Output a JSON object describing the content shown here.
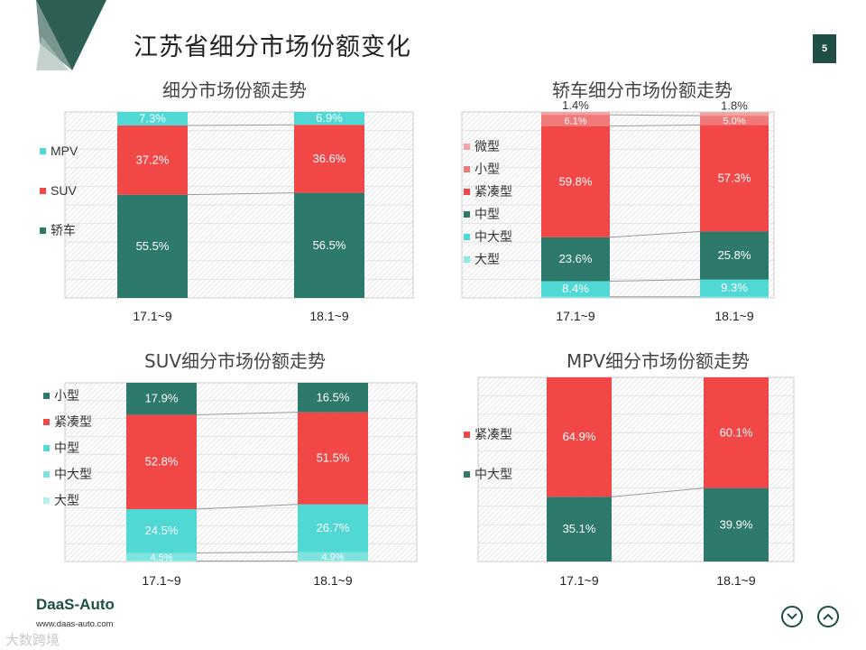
{
  "page": {
    "title": "江苏省细分市场份额变化",
    "page_number": "5",
    "logo": "DaaS-Auto",
    "logo_url": "www.daas-auto.com",
    "watermark": "大数跨境",
    "colors": {
      "dark_teal": "#2d7a6c",
      "red": "#f24747",
      "cyan": "#4fd8d4",
      "deep": "#1f4e45"
    }
  },
  "nav": {
    "down_icon": "chevron-down-icon",
    "up_icon": "chevron-up-icon"
  },
  "chart_data": [
    {
      "type": "bar",
      "title": "细分市场份额走势",
      "categories": [
        "17.1~9",
        "18.1~9"
      ],
      "series": [
        {
          "name": "轿车",
          "values": [
            55.5,
            56.5
          ],
          "labels": [
            "55.5%",
            "56.5%"
          ],
          "color": "#2d7a6c"
        },
        {
          "name": "SUV",
          "values": [
            37.2,
            36.6
          ],
          "labels": [
            "37.2%",
            "36.6%"
          ],
          "color": "#f24747"
        },
        {
          "name": "MPV",
          "values": [
            7.3,
            6.9
          ],
          "labels": [
            "7.3%",
            "6.9%"
          ],
          "color": "#4fd8d4"
        }
      ],
      "legend": [
        "MPV",
        "SUV",
        "轿车"
      ],
      "legend_colors": [
        "#4fd8d4",
        "#f24747",
        "#2d7a6c"
      ],
      "stacked": true,
      "grid": true,
      "legend_position": "left"
    },
    {
      "type": "bar",
      "title": "轿车细分市场份额走势",
      "categories": [
        "17.1~9",
        "18.1~9"
      ],
      "series": [
        {
          "name": "大型",
          "values": [
            0.6,
            0.6
          ],
          "labels": [
            "",
            ""
          ],
          "color": "#8ee8e4"
        },
        {
          "name": "中大型",
          "values": [
            8.4,
            9.3
          ],
          "labels": [
            "8.4%",
            "9.3%"
          ],
          "color": "#4fd8d4"
        },
        {
          "name": "中型",
          "values": [
            23.6,
            25.8
          ],
          "labels": [
            "23.6%",
            "25.8%"
          ],
          "color": "#2d7a6c"
        },
        {
          "name": "紧凑型",
          "values": [
            59.8,
            57.3
          ],
          "labels": [
            "59.8%",
            "57.3%"
          ],
          "color": "#f24747"
        },
        {
          "name": "小型",
          "values": [
            6.1,
            5.0
          ],
          "labels": [
            "6.1%",
            "5.0%"
          ],
          "color": "#f07a7a"
        },
        {
          "name": "微型",
          "values": [
            1.4,
            1.8
          ],
          "labels": [
            "1.4%",
            "1.8%"
          ],
          "color": "#f4a3a3"
        }
      ],
      "legend": [
        "微型",
        "小型",
        "紧凑型",
        "中型",
        "中大型",
        "大型"
      ],
      "legend_colors": [
        "#f4a3a3",
        "#f07a7a",
        "#f24747",
        "#2d7a6c",
        "#4fd8d4",
        "#8ee8e4"
      ],
      "stacked": true,
      "grid": true,
      "legend_position": "left"
    },
    {
      "type": "bar",
      "title": "SUV细分市场份额走势",
      "categories": [
        "17.1~9",
        "18.1~9"
      ],
      "series": [
        {
          "name": "大型",
          "values": [
            0.3,
            0.4
          ],
          "labels": [
            "",
            ""
          ],
          "color": "#b8f0ee"
        },
        {
          "name": "中大型",
          "values": [
            4.5,
            4.9
          ],
          "labels": [
            "4.5%",
            "4.9%"
          ],
          "color": "#7fe3df"
        },
        {
          "name": "中型",
          "values": [
            24.5,
            26.7
          ],
          "labels": [
            "24.5%",
            "26.7%"
          ],
          "color": "#4fd8d4"
        },
        {
          "name": "紧凑型",
          "values": [
            52.8,
            51.5
          ],
          "labels": [
            "52.8%",
            "51.5%"
          ],
          "color": "#f24747"
        },
        {
          "name": "小型",
          "values": [
            17.9,
            16.5
          ],
          "labels": [
            "17.9%",
            "16.5%"
          ],
          "color": "#2d7a6c"
        }
      ],
      "legend": [
        "小型",
        "紧凑型",
        "中型",
        "中大型",
        "大型"
      ],
      "legend_colors": [
        "#2d7a6c",
        "#f24747",
        "#4fd8d4",
        "#7fe3df",
        "#b8f0ee"
      ],
      "stacked": true,
      "grid": true,
      "legend_position": "left"
    },
    {
      "type": "bar",
      "title": "MPV细分市场份额走势",
      "categories": [
        "17.1~9",
        "18.1~9"
      ],
      "series": [
        {
          "name": "中大型",
          "values": [
            35.1,
            39.9
          ],
          "labels": [
            "35.1%",
            "39.9%"
          ],
          "color": "#2d7a6c"
        },
        {
          "name": "紧凑型",
          "values": [
            64.9,
            60.1
          ],
          "labels": [
            "64.9%",
            "60.1%"
          ],
          "color": "#f24747"
        }
      ],
      "legend": [
        "紧凑型",
        "中大型"
      ],
      "legend_colors": [
        "#f24747",
        "#2d7a6c"
      ],
      "stacked": true,
      "grid": true,
      "legend_position": "left"
    }
  ]
}
